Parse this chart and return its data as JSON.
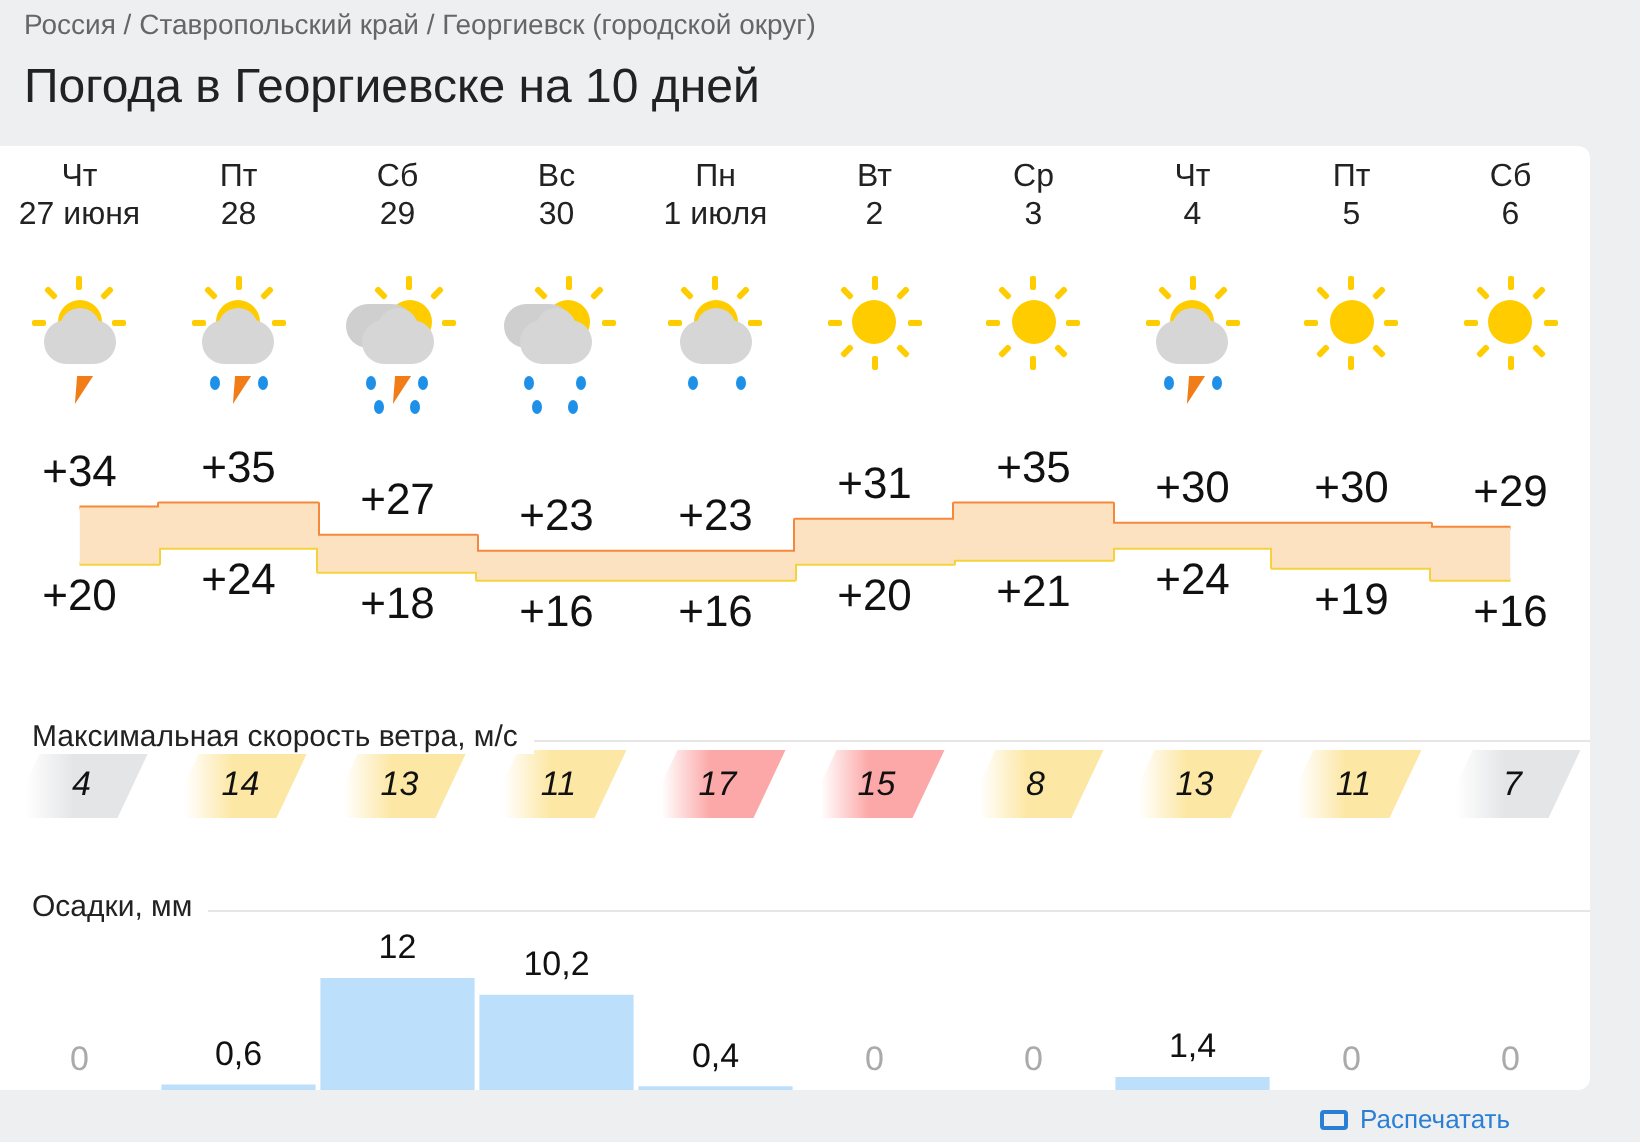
{
  "chart_data": [
    {
      "type": "step",
      "title": "Погода в Георгиевске на 10 дней",
      "annotations": [
        "Россия / Ставропольский край / Георгиевск (городской округ)"
      ],
      "categories": [
        "Чт\n27 июня",
        "Пт\n28",
        "Сб\n29",
        "Вс\n30",
        "Пн\n1 июля",
        "Вт\n2",
        "Ср\n3",
        "Чт\n4",
        "Пт\n5",
        "Сб\n6"
      ],
      "series": [
        {
          "color": "#f5883a",
          "values": [
            34,
            35,
            27,
            23,
            23,
            31,
            35,
            30,
            30,
            29
          ],
          "value_labels": [
            "+34",
            "+35",
            "+27",
            "+23",
            "+23",
            "+31",
            "+35",
            "+30",
            "+30",
            "+29"
          ],
          "lower": [
            20,
            24,
            18,
            16,
            16,
            20,
            21,
            24,
            19,
            16
          ],
          "upper": [
            34,
            35,
            27,
            23,
            23,
            31,
            35,
            30,
            30,
            29
          ]
        },
        {
          "color": "#f5d23c",
          "values": [
            20,
            24,
            18,
            16,
            16,
            20,
            21,
            24,
            19,
            16
          ],
          "value_labels": [
            "+20",
            "+24",
            "+18",
            "+16",
            "+16",
            "+20",
            "+21",
            "+24",
            "+19",
            "+16"
          ]
        }
      ]
    },
    {
      "type": "other",
      "title": "Максимальная скорость ветра, м/с",
      "categories": [
        null,
        null,
        null,
        null,
        null,
        null,
        null,
        null,
        null,
        null
      ],
      "values": [
        4,
        14,
        13,
        11,
        17,
        15,
        8,
        13,
        11,
        7
      ],
      "data_labels": true
    },
    {
      "type": "bar",
      "title": "Осадки, мм",
      "annotations": [
        "Распечатать"
      ],
      "categories": [
        null,
        null,
        null,
        null,
        null,
        null,
        null,
        null,
        null,
        null
      ],
      "color": "#bce0fb",
      "values": [
        0,
        0.6,
        12,
        10.2,
        0.4,
        0,
        0,
        1.4,
        0,
        0
      ],
      "value_labels": [
        "0",
        "0,6",
        "12",
        "10,2",
        "0,4",
        "0",
        "0",
        "1,4",
        "0",
        "0"
      ]
    }
  ]
}
